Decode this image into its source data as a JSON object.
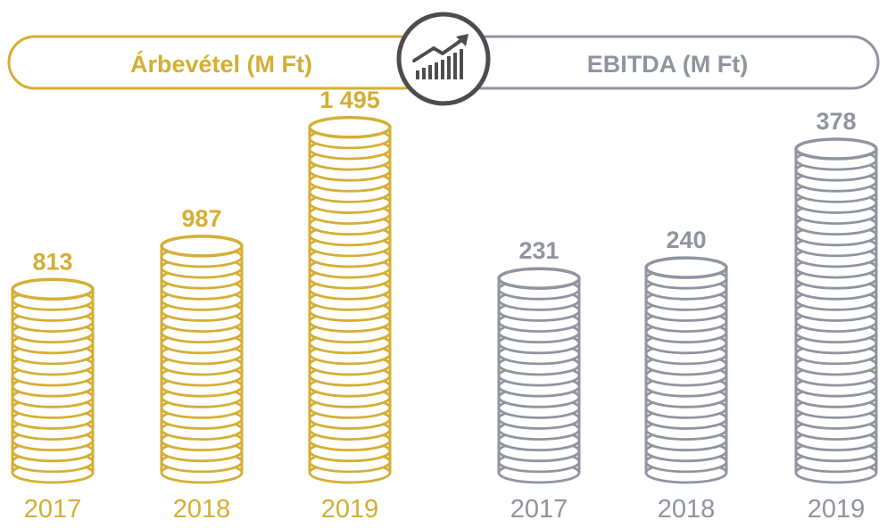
{
  "colors": {
    "revenue": "#d4ae35",
    "ebitda": "#8f949f",
    "badge": "#4d4d4d"
  },
  "header": {
    "left_title": "Árbevétel (M Ft)",
    "right_title": "EBITDA (M Ft)",
    "badge_icon": "growth-bar-chart-icon"
  },
  "chart_data": [
    {
      "type": "bar",
      "title": "Árbevétel (M Ft)",
      "categories": [
        "2017",
        "2018",
        "2019"
      ],
      "values": [
        813,
        987,
        1495
      ],
      "value_labels": [
        "813",
        "987",
        "1 495"
      ],
      "color": "#d4ae35"
    },
    {
      "type": "bar",
      "title": "EBITDA (M Ft)",
      "categories": [
        "2017",
        "2018",
        "2019"
      ],
      "values": [
        231,
        240,
        378
      ],
      "value_labels": [
        "231",
        "240",
        "378"
      ],
      "color": "#8f949f"
    }
  ]
}
